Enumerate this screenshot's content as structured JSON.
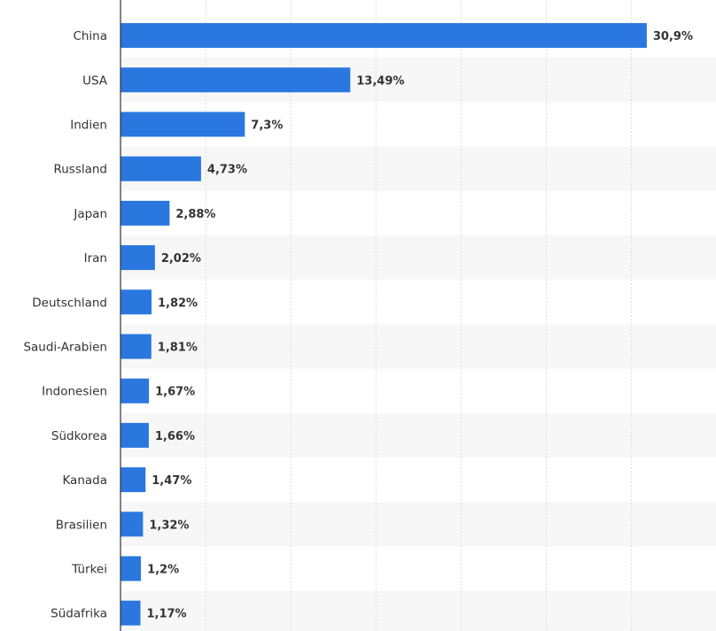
{
  "chart_data": {
    "type": "bar",
    "orientation": "horizontal",
    "categories": [
      "China",
      "USA",
      "Indien",
      "Russland",
      "Japan",
      "Iran",
      "Deutschland",
      "Saudi-Arabien",
      "Indonesien",
      "Südkorea",
      "Kanada",
      "Brasilien",
      "Türkei",
      "Südafrika"
    ],
    "values": [
      30.9,
      13.49,
      7.3,
      4.73,
      2.88,
      2.02,
      1.82,
      1.81,
      1.67,
      1.66,
      1.47,
      1.32,
      1.2,
      1.17
    ],
    "value_labels": [
      "30,9%",
      "13,49%",
      "7,3%",
      "4,73%",
      "2,88%",
      "2,02%",
      "1,82%",
      "1,81%",
      "1,67%",
      "1,66%",
      "1,47%",
      "1,32%",
      "1,2%",
      "1,17%"
    ],
    "title": "",
    "xlabel": "",
    "ylabel": "",
    "xlim": [
      0,
      35
    ],
    "grid": true,
    "legend": "none",
    "colors": {
      "bar": "#2a77e0",
      "grid": "#dddddd",
      "band": "#f7f7f7",
      "axis": "#333333",
      "text": "#333333"
    }
  }
}
